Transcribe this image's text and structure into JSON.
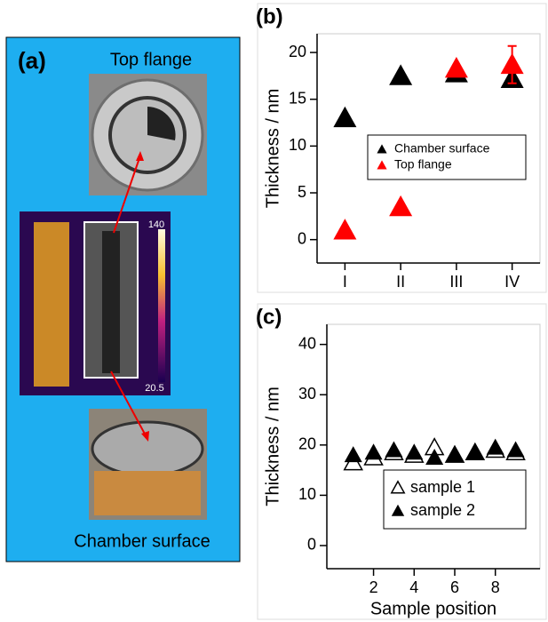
{
  "panel_a": {
    "label": "(a)",
    "top_label": "Top flange",
    "bottom_label": "Chamber surface",
    "scale_max": "140",
    "scale_min": "20.5"
  },
  "chart_data": [
    {
      "type": "scatter",
      "panel_label": "(b)",
      "y_label": "Thickness / nm",
      "categories": [
        "I",
        "II",
        "III",
        "IV"
      ],
      "ylim": [
        -2.5,
        22
      ],
      "yticks": [
        0,
        5,
        10,
        15,
        20
      ],
      "legend": "center right",
      "grid": false,
      "series": [
        {
          "name": "Chamber surface",
          "color": "#000000",
          "filled": true,
          "values": [
            13,
            17.5,
            17.8,
            17.2
          ]
        },
        {
          "name": "Top flange",
          "color": "#ff0000",
          "filled": true,
          "values": [
            1,
            3.5,
            18.3,
            18.7
          ],
          "errors": [
            null,
            null,
            null,
            2
          ]
        }
      ]
    },
    {
      "type": "scatter",
      "panel_label": "(c)",
      "y_label": "Thickness / nm",
      "x_label": "Sample position",
      "xlim": [
        -0.3,
        10.2
      ],
      "xticks": [
        2,
        4,
        6,
        8
      ],
      "ylim": [
        -4.6,
        44
      ],
      "yticks": [
        0,
        10,
        20,
        30,
        40
      ],
      "legend": "lower right",
      "grid": false,
      "series": [
        {
          "name": "sample 1",
          "color": "#000000",
          "filled": false,
          "x": [
            1,
            2,
            3,
            4,
            5,
            6,
            7,
            8,
            9
          ],
          "values": [
            16.5,
            17.5,
            18.5,
            18,
            19.5,
            18,
            18.5,
            19,
            18.5
          ]
        },
        {
          "name": "sample 2",
          "color": "#000000",
          "filled": true,
          "x": [
            1,
            2,
            3,
            4,
            5,
            6,
            7,
            8,
            9
          ],
          "values": [
            18,
            18.5,
            19,
            18.5,
            17.5,
            18,
            18.5,
            19.5,
            19
          ]
        }
      ]
    }
  ]
}
